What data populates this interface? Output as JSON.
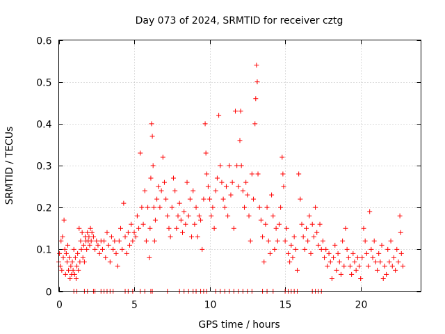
{
  "chart_data": {
    "type": "scatter",
    "title": "Day 073 of 2024, SRMTID for receiver cztg",
    "xlabel": "GPS time / hours",
    "ylabel": "SRMTID / TECUs",
    "xlim": [
      0,
      24
    ],
    "ylim": [
      0,
      0.6
    ],
    "xticks": [
      0,
      5,
      10,
      15,
      20
    ],
    "yticks": [
      0,
      0.1,
      0.2,
      0.3,
      0.4,
      0.5,
      0.6
    ],
    "xtick_labels": [
      "0",
      "5",
      "10",
      "15",
      "20"
    ],
    "ytick_labels": [
      "0",
      "0.1",
      "0.2",
      "0.3",
      "0.4",
      "0.5",
      "0.6"
    ],
    "grid": true,
    "marker": "+",
    "series": [
      {
        "name": "SRMTID",
        "color": "#ff0000",
        "points": [
          [
            0.0,
            0.07
          ],
          [
            0.05,
            0.09
          ],
          [
            0.1,
            0.06
          ],
          [
            0.15,
            0.12
          ],
          [
            0.2,
            0.05
          ],
          [
            0.25,
            0.13
          ],
          [
            0.3,
            0.08
          ],
          [
            0.35,
            0.17
          ],
          [
            0.4,
            0.1
          ],
          [
            0.45,
            0.04
          ],
          [
            0.5,
            0.09
          ],
          [
            0.55,
            0.07
          ],
          [
            0.6,
            0.11
          ],
          [
            0.65,
            0.05
          ],
          [
            0.7,
            0.08
          ],
          [
            0.75,
            0.03
          ],
          [
            0.8,
            0.06
          ],
          [
            0.85,
            0.04
          ],
          [
            0.9,
            0.07
          ],
          [
            0.95,
            0.05
          ],
          [
            1.0,
            0.1
          ],
          [
            1.05,
            0.04
          ],
          [
            1.1,
            0.08
          ],
          [
            1.15,
            0.03
          ],
          [
            1.2,
            0.06
          ],
          [
            1.25,
            0.09
          ],
          [
            1.3,
            0.05
          ],
          [
            1.35,
            0.15
          ],
          [
            1.4,
            0.07
          ],
          [
            1.45,
            0.12
          ],
          [
            1.5,
            0.1
          ],
          [
            1.55,
            0.14
          ],
          [
            1.6,
            0.08
          ],
          [
            1.65,
            0.11
          ],
          [
            1.7,
            0.07
          ],
          [
            1.75,
            0.13
          ],
          [
            1.8,
            0.12
          ],
          [
            1.85,
            0.1
          ],
          [
            1.9,
            0.14
          ],
          [
            1.95,
            0.12
          ],
          [
            2.0,
            0.13
          ],
          [
            2.05,
            0.11
          ],
          [
            2.1,
            0.15
          ],
          [
            2.15,
            0.12
          ],
          [
            2.2,
            0.14
          ],
          [
            2.3,
            0.13
          ],
          [
            2.4,
            0.1
          ],
          [
            2.5,
            0.12
          ],
          [
            2.6,
            0.11
          ],
          [
            2.7,
            0.09
          ],
          [
            2.8,
            0.12
          ],
          [
            2.9,
            0.1
          ],
          [
            3.0,
            0.12
          ],
          [
            3.1,
            0.08
          ],
          [
            3.2,
            0.14
          ],
          [
            3.3,
            0.11
          ],
          [
            3.4,
            0.07
          ],
          [
            3.5,
            0.13
          ],
          [
            3.6,
            0.1
          ],
          [
            3.7,
            0.12
          ],
          [
            3.8,
            0.09
          ],
          [
            3.9,
            0.06
          ],
          [
            4.0,
            0.12
          ],
          [
            4.1,
            0.15
          ],
          [
            4.2,
            0.1
          ],
          [
            4.3,
            0.21
          ],
          [
            4.4,
            0.13
          ],
          [
            4.5,
            0.09
          ],
          [
            4.6,
            0.14
          ],
          [
            4.7,
            0.11
          ],
          [
            4.8,
            0.16
          ],
          [
            4.9,
            0.12
          ],
          [
            5.0,
            0.14
          ],
          [
            5.1,
            0.13
          ],
          [
            5.2,
            0.18
          ],
          [
            5.3,
            0.15
          ],
          [
            5.4,
            0.33
          ],
          [
            5.5,
            0.2
          ],
          [
            5.6,
            0.16
          ],
          [
            5.7,
            0.24
          ],
          [
            5.8,
            0.12
          ],
          [
            5.9,
            0.2
          ],
          [
            6.0,
            0.08
          ],
          [
            6.05,
            0.15
          ],
          [
            6.1,
            0.27
          ],
          [
            6.15,
            0.4
          ],
          [
            6.2,
            0.37
          ],
          [
            6.25,
            0.3
          ],
          [
            6.3,
            0.2
          ],
          [
            6.35,
            0.12
          ],
          [
            6.4,
            0.17
          ],
          [
            6.5,
            0.22
          ],
          [
            6.6,
            0.25
          ],
          [
            6.7,
            0.2
          ],
          [
            6.8,
            0.24
          ],
          [
            6.9,
            0.32
          ],
          [
            7.0,
            0.26
          ],
          [
            7.1,
            0.22
          ],
          [
            7.2,
            0.18
          ],
          [
            7.3,
            0.15
          ],
          [
            7.4,
            0.13
          ],
          [
            7.5,
            0.2
          ],
          [
            7.6,
            0.27
          ],
          [
            7.7,
            0.24
          ],
          [
            7.8,
            0.15
          ],
          [
            7.9,
            0.18
          ],
          [
            8.0,
            0.21
          ],
          [
            8.1,
            0.17
          ],
          [
            8.2,
            0.14
          ],
          [
            8.3,
            0.19
          ],
          [
            8.4,
            0.16
          ],
          [
            8.5,
            0.26
          ],
          [
            8.6,
            0.18
          ],
          [
            8.7,
            0.22
          ],
          [
            8.8,
            0.13
          ],
          [
            8.9,
            0.24
          ],
          [
            9.0,
            0.16
          ],
          [
            9.1,
            0.2
          ],
          [
            9.2,
            0.13
          ],
          [
            9.3,
            0.18
          ],
          [
            9.4,
            0.17
          ],
          [
            9.5,
            0.1
          ],
          [
            9.6,
            0.22
          ],
          [
            9.7,
            0.4
          ],
          [
            9.75,
            0.33
          ],
          [
            9.8,
            0.28
          ],
          [
            9.9,
            0.25
          ],
          [
            10.0,
            0.22
          ],
          [
            10.1,
            0.18
          ],
          [
            10.2,
            0.2
          ],
          [
            10.3,
            0.15
          ],
          [
            10.4,
            0.24
          ],
          [
            10.5,
            0.27
          ],
          [
            10.6,
            0.42
          ],
          [
            10.7,
            0.3
          ],
          [
            10.8,
            0.26
          ],
          [
            10.9,
            0.22
          ],
          [
            11.0,
            0.2
          ],
          [
            11.1,
            0.25
          ],
          [
            11.2,
            0.18
          ],
          [
            11.3,
            0.3
          ],
          [
            11.4,
            0.23
          ],
          [
            11.5,
            0.26
          ],
          [
            11.6,
            0.15
          ],
          [
            11.7,
            0.43
          ],
          [
            11.8,
            0.3
          ],
          [
            11.9,
            0.25
          ],
          [
            12.0,
            0.36
          ],
          [
            12.05,
            0.43
          ],
          [
            12.1,
            0.3
          ],
          [
            12.2,
            0.24
          ],
          [
            12.3,
            0.2
          ],
          [
            12.4,
            0.26
          ],
          [
            12.5,
            0.23
          ],
          [
            12.6,
            0.18
          ],
          [
            12.7,
            0.12
          ],
          [
            12.8,
            0.28
          ],
          [
            12.9,
            0.22
          ],
          [
            13.0,
            0.4
          ],
          [
            13.05,
            0.46
          ],
          [
            13.1,
            0.54
          ],
          [
            13.15,
            0.5
          ],
          [
            13.2,
            0.28
          ],
          [
            13.3,
            0.2
          ],
          [
            13.4,
            0.17
          ],
          [
            13.5,
            0.13
          ],
          [
            13.6,
            0.07
          ],
          [
            13.7,
            0.16
          ],
          [
            13.8,
            0.2
          ],
          [
            13.9,
            0.12
          ],
          [
            14.0,
            0.09
          ],
          [
            14.1,
            0.23
          ],
          [
            14.2,
            0.18
          ],
          [
            14.3,
            0.1
          ],
          [
            14.4,
            0.15
          ],
          [
            14.5,
            0.12
          ],
          [
            14.6,
            0.16
          ],
          [
            14.7,
            0.2
          ],
          [
            14.8,
            0.32
          ],
          [
            14.85,
            0.28
          ],
          [
            14.9,
            0.25
          ],
          [
            15.0,
            0.12
          ],
          [
            15.1,
            0.15
          ],
          [
            15.2,
            0.09
          ],
          [
            15.3,
            0.07
          ],
          [
            15.4,
            0.11
          ],
          [
            15.5,
            0.08
          ],
          [
            15.6,
            0.13
          ],
          [
            15.7,
            0.1
          ],
          [
            15.8,
            0.05
          ],
          [
            15.9,
            0.28
          ],
          [
            16.0,
            0.22
          ],
          [
            16.1,
            0.16
          ],
          [
            16.2,
            0.13
          ],
          [
            16.3,
            0.1
          ],
          [
            16.4,
            0.15
          ],
          [
            16.5,
            0.12
          ],
          [
            16.6,
            0.18
          ],
          [
            16.7,
            0.09
          ],
          [
            16.8,
            0.16
          ],
          [
            16.9,
            0.13
          ],
          [
            17.0,
            0.2
          ],
          [
            17.1,
            0.14
          ],
          [
            17.2,
            0.11
          ],
          [
            17.3,
            0.16
          ],
          [
            17.4,
            0.1
          ],
          [
            17.5,
            0.12
          ],
          [
            17.6,
            0.08
          ],
          [
            17.7,
            0.1
          ],
          [
            17.8,
            0.06
          ],
          [
            17.9,
            0.09
          ],
          [
            18.0,
            0.07
          ],
          [
            18.1,
            0.03
          ],
          [
            18.2,
            0.08
          ],
          [
            18.3,
            0.11
          ],
          [
            18.4,
            0.05
          ],
          [
            18.5,
            0.09
          ],
          [
            18.6,
            0.07
          ],
          [
            18.7,
            0.04
          ],
          [
            18.8,
            0.12
          ],
          [
            18.9,
            0.06
          ],
          [
            19.0,
            0.15
          ],
          [
            19.1,
            0.1
          ],
          [
            19.2,
            0.08
          ],
          [
            19.3,
            0.06
          ],
          [
            19.4,
            0.04
          ],
          [
            19.5,
            0.09
          ],
          [
            19.6,
            0.07
          ],
          [
            19.7,
            0.05
          ],
          [
            19.8,
            0.08
          ],
          [
            19.9,
            0.06
          ],
          [
            20.0,
            0.03
          ],
          [
            20.1,
            0.08
          ],
          [
            20.2,
            0.15
          ],
          [
            20.3,
            0.12
          ],
          [
            20.4,
            0.09
          ],
          [
            20.5,
            0.06
          ],
          [
            20.6,
            0.19
          ],
          [
            20.7,
            0.1
          ],
          [
            20.8,
            0.08
          ],
          [
            20.9,
            0.12
          ],
          [
            21.0,
            0.07
          ],
          [
            21.1,
            0.05
          ],
          [
            21.2,
            0.09
          ],
          [
            21.3,
            0.07
          ],
          [
            21.4,
            0.11
          ],
          [
            21.5,
            0.03
          ],
          [
            21.6,
            0.06
          ],
          [
            21.7,
            0.04
          ],
          [
            21.8,
            0.1
          ],
          [
            21.9,
            0.07
          ],
          [
            22.0,
            0.12
          ],
          [
            22.1,
            0.06
          ],
          [
            22.2,
            0.08
          ],
          [
            22.3,
            0.05
          ],
          [
            22.4,
            0.1
          ],
          [
            22.5,
            0.07
          ],
          [
            22.6,
            0.18
          ],
          [
            22.65,
            0.14
          ],
          [
            22.7,
            0.09
          ],
          [
            22.8,
            0.06
          ],
          [
            1.0,
            0.0
          ],
          [
            1.2,
            0.0
          ],
          [
            1.7,
            0.0
          ],
          [
            1.9,
            0.0
          ],
          [
            2.3,
            0.0
          ],
          [
            2.4,
            0.0
          ],
          [
            2.8,
            0.0
          ],
          [
            3.0,
            0.0
          ],
          [
            3.2,
            0.0
          ],
          [
            3.4,
            0.0
          ],
          [
            3.6,
            0.0
          ],
          [
            4.4,
            0.0
          ],
          [
            4.6,
            0.0
          ],
          [
            4.9,
            0.0
          ],
          [
            5.4,
            0.0
          ],
          [
            5.7,
            0.0
          ],
          [
            6.1,
            0.0
          ],
          [
            6.2,
            0.0
          ],
          [
            7.2,
            0.0
          ],
          [
            8.0,
            0.0
          ],
          [
            8.3,
            0.0
          ],
          [
            8.6,
            0.0
          ],
          [
            8.9,
            0.0
          ],
          [
            9.1,
            0.0
          ],
          [
            9.4,
            0.0
          ],
          [
            9.6,
            0.0
          ],
          [
            9.8,
            0.0
          ],
          [
            10.4,
            0.0
          ],
          [
            10.7,
            0.0
          ],
          [
            11.0,
            0.0
          ],
          [
            11.3,
            0.0
          ],
          [
            11.6,
            0.0
          ],
          [
            11.9,
            0.0
          ],
          [
            12.2,
            0.0
          ],
          [
            12.5,
            0.0
          ],
          [
            12.8,
            0.0
          ],
          [
            13.5,
            0.0
          ],
          [
            13.8,
            0.0
          ],
          [
            14.2,
            0.0
          ],
          [
            15.0,
            0.0
          ],
          [
            15.2,
            0.0
          ],
          [
            15.4,
            0.0
          ],
          [
            15.6,
            0.0
          ],
          [
            15.8,
            0.0
          ],
          [
            16.8,
            0.0
          ],
          [
            17.0,
            0.0
          ],
          [
            17.2,
            0.0
          ],
          [
            17.4,
            0.0
          ]
        ]
      }
    ]
  }
}
